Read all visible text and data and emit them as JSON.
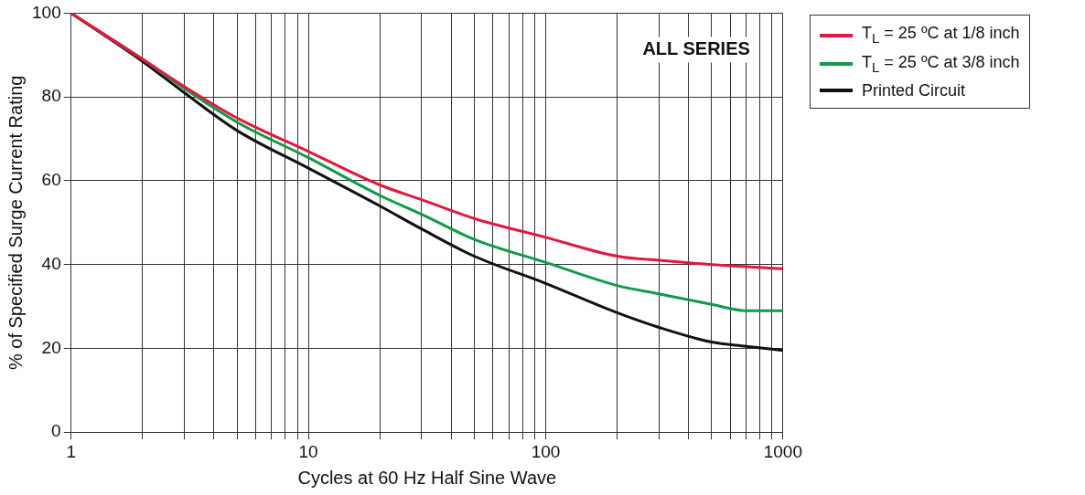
{
  "chart_data": {
    "type": "line",
    "xlabel": "Cycles at 60 Hz Half Sine Wave",
    "ylabel": "% of Specified Surge Current Rating",
    "annotations": [
      "ALL SERIES"
    ],
    "log": "x",
    "grid": true,
    "legend": "right",
    "marker": "none",
    "line_style": "solid",
    "xlim": [
      1,
      1000
    ],
    "ylim": [
      0,
      100
    ],
    "xticks": [
      1,
      {
        "value": 2,
        "label": null
      },
      {
        "value": 3,
        "label": null
      },
      {
        "value": 4,
        "label": null
      },
      {
        "value": 5,
        "label": null
      },
      {
        "value": 6,
        "label": null
      },
      {
        "value": 7,
        "label": null
      },
      {
        "value": 8,
        "label": null
      },
      {
        "value": 9,
        "label": null
      },
      10,
      {
        "value": 20,
        "label": null
      },
      {
        "value": 30,
        "label": null
      },
      {
        "value": 40,
        "label": null
      },
      {
        "value": 50,
        "label": null
      },
      {
        "value": 60,
        "label": null
      },
      {
        "value": 70,
        "label": null
      },
      {
        "value": 80,
        "label": null
      },
      {
        "value": 90,
        "label": null
      },
      100,
      {
        "value": 200,
        "label": null
      },
      {
        "value": 300,
        "label": null
      },
      {
        "value": 400,
        "label": null
      },
      {
        "value": 500,
        "label": null
      },
      {
        "value": 600,
        "label": null
      },
      {
        "value": 700,
        "label": null
      },
      {
        "value": 800,
        "label": null
      },
      {
        "value": 900,
        "label": null
      },
      1000
    ],
    "yticks": [
      0,
      20,
      40,
      60,
      80,
      100
    ],
    "series": [
      {
        "name": "T$_{L}$ = 25 ºC at 1/8 inch",
        "color": "#e4173e",
        "x": [
          1,
          2,
          3,
          5,
          10,
          20,
          30,
          50,
          100,
          200,
          300,
          500,
          700,
          1000
        ],
        "values": [
          100,
          89,
          82.5,
          75,
          67,
          59,
          55.5,
          51,
          46.5,
          42,
          41,
          40,
          39.5,
          39
        ]
      },
      {
        "name": "T$_{L}$ = 25 ºC at 3/8 inch",
        "color": "#0f9b48",
        "x": [
          1,
          2,
          3,
          5,
          10,
          20,
          30,
          50,
          100,
          200,
          300,
          500,
          700,
          1000
        ],
        "values": [
          100,
          89,
          82,
          74,
          65.5,
          56.5,
          52,
          46,
          40.5,
          35,
          33,
          30.5,
          29,
          29
        ]
      },
      {
        "name": "Printed Circuit",
        "color": "#111111",
        "x": [
          1,
          2,
          3,
          5,
          10,
          20,
          30,
          50,
          100,
          200,
          300,
          500,
          700,
          1000
        ],
        "values": [
          100,
          88.5,
          81,
          72,
          63,
          54,
          48.5,
          42,
          35.5,
          28.5,
          25,
          21.5,
          20.5,
          19.5
        ]
      }
    ]
  }
}
